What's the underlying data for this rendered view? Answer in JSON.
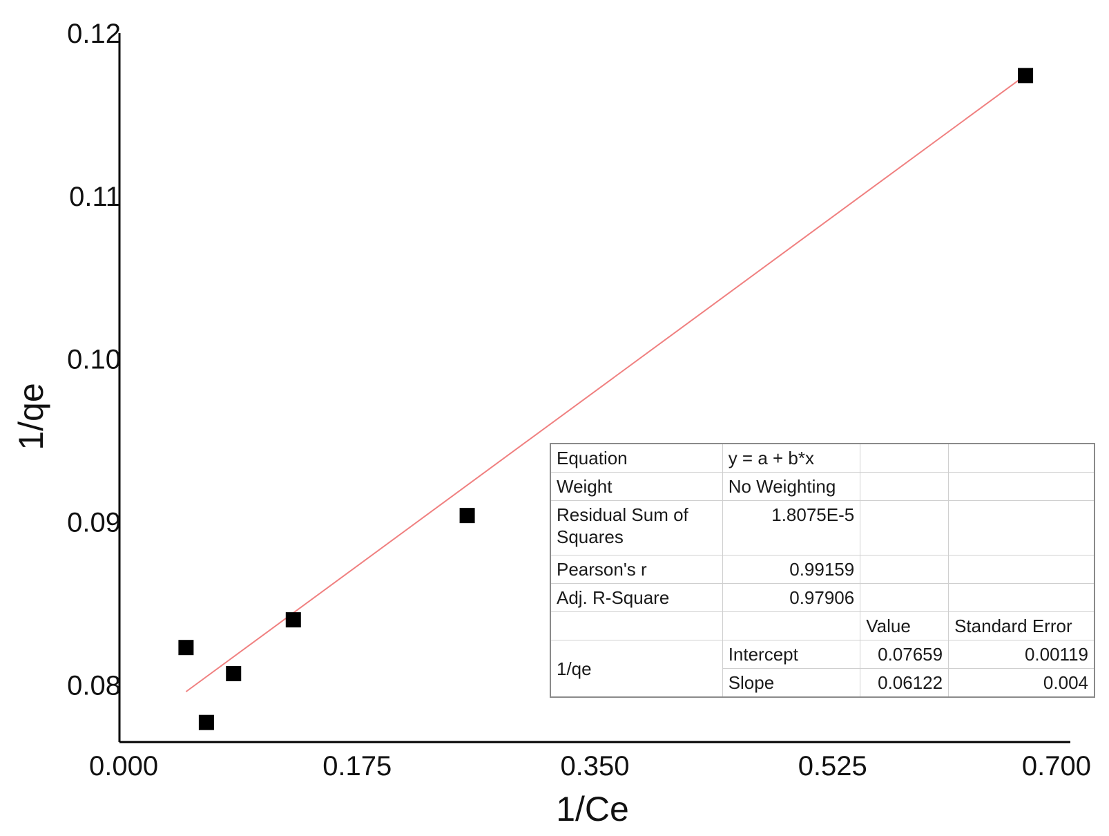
{
  "chart_data": {
    "type": "scatter",
    "xlabel": "1/Ce",
    "ylabel": "1/qe",
    "xlim": [
      0.0,
      0.7
    ],
    "ylim": [
      0.0765,
      0.12
    ],
    "x_ticks": [
      "0.000",
      "0.175",
      "0.350",
      "0.525",
      "0.700"
    ],
    "y_ticks": [
      "0.08",
      "0.09",
      "0.10",
      "0.11",
      "0.12"
    ],
    "points": [
      {
        "x": 0.049,
        "y": 0.0823
      },
      {
        "x": 0.064,
        "y": 0.0777
      },
      {
        "x": 0.084,
        "y": 0.0807
      },
      {
        "x": 0.128,
        "y": 0.084
      },
      {
        "x": 0.256,
        "y": 0.0904
      },
      {
        "x": 0.667,
        "y": 0.1174
      }
    ],
    "fit_line": {
      "intercept": 0.07659,
      "slope": 0.06122,
      "x_range": [
        0.049,
        0.667
      ],
      "color": "#f08080"
    },
    "marker_color": "#000000"
  },
  "stats_table": {
    "equation_label": "Equation",
    "equation_value": "y = a + b*x",
    "weight_label": "Weight",
    "weight_value": "No Weighting",
    "rss_label": "Residual Sum of Squares",
    "rss_value": "1.8075E-5",
    "pearson_label": "Pearson's r",
    "pearson_value": "0.99159",
    "adjr_label": "Adj. R-Square",
    "adjr_value": "0.97906",
    "col_value": "Value",
    "col_stderr": "Standard Error",
    "row_group": "1/qe",
    "intercept_label": "Intercept",
    "intercept_value": "0.07659",
    "intercept_se": "0.00119",
    "slope_label": "Slope",
    "slope_value": "0.06122",
    "slope_se": "0.004"
  }
}
